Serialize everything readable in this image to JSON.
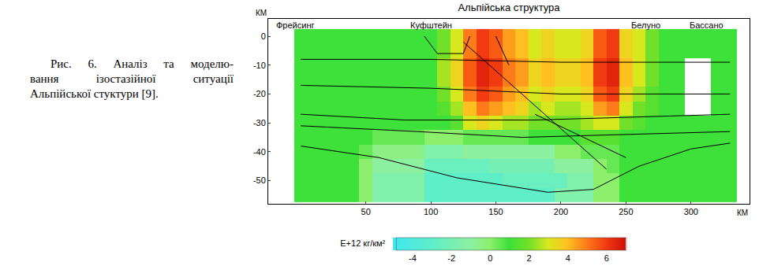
{
  "chart_data": {
    "type": "heatmap",
    "title": "Альпійська структура",
    "caption": [
      "Рис. 6. Аналіз та моделю-",
      "вання ізостазійної ситуації",
      "Альпійської стуктури [9]."
    ],
    "xlabel": "КМ",
    "ylabel": "КМ",
    "x": [
      0,
      10,
      20,
      30,
      40,
      50,
      60,
      70,
      80,
      90,
      100,
      110,
      120,
      130,
      140,
      150,
      160,
      170,
      180,
      190,
      200,
      210,
      220,
      230,
      240,
      250,
      260,
      270,
      280,
      290,
      300,
      310,
      320,
      330
    ],
    "y": [
      0,
      -5,
      -10,
      -15,
      -20,
      -25,
      -30,
      -35,
      -40,
      -45,
      -50,
      -55
    ],
    "cells": [
      [
        1,
        1,
        1,
        1,
        1,
        1,
        1,
        1,
        1,
        1,
        1,
        2,
        3,
        5,
        6,
        5.5,
        4.5,
        4,
        3,
        3.5,
        3,
        3,
        3.5,
        5.5,
        6,
        3.5,
        3,
        2,
        1,
        1,
        1,
        1,
        1,
        1
      ],
      [
        1,
        1,
        1,
        1,
        1,
        1,
        1,
        1,
        1,
        1,
        1,
        2,
        3,
        5,
        6,
        5.5,
        4.5,
        4,
        3,
        3.5,
        3,
        3,
        3.5,
        5.5,
        6,
        3.5,
        3,
        2,
        1,
        1,
        1,
        1,
        1,
        1
      ],
      [
        1,
        1,
        1,
        1,
        1,
        1,
        1,
        1,
        1,
        1,
        1,
        2.5,
        3.5,
        5.5,
        6.5,
        6,
        5,
        4.5,
        3.5,
        4,
        3.5,
        3.5,
        4,
        6,
        6.5,
        4,
        3,
        2,
        1,
        1,
        null,
        null,
        1,
        1
      ],
      [
        1,
        1,
        1,
        1,
        1,
        1,
        1,
        1,
        1,
        1,
        1,
        2.5,
        3.5,
        5.5,
        6.5,
        6,
        5,
        4.5,
        3.5,
        4,
        3.5,
        3.5,
        4,
        6,
        6.5,
        4,
        3,
        2,
        1,
        1,
        null,
        null,
        1,
        1
      ],
      [
        1,
        1,
        1,
        1,
        1,
        1,
        1,
        1,
        1,
        1,
        1,
        2,
        3,
        5,
        6,
        5.5,
        4.5,
        4,
        3,
        3.5,
        3,
        3,
        3.5,
        5.5,
        6,
        3.5,
        2.5,
        1.5,
        1,
        1,
        null,
        null,
        1,
        1
      ],
      [
        1,
        1,
        1,
        1,
        1,
        1,
        1,
        1,
        1,
        1,
        1,
        1.5,
        2.5,
        4,
        5,
        4.5,
        4,
        3.5,
        2.5,
        3,
        2.5,
        2.5,
        3,
        4.5,
        5,
        3,
        2,
        1.5,
        1,
        1,
        null,
        null,
        1,
        1
      ],
      [
        1,
        1,
        1,
        1,
        1,
        1,
        1,
        1,
        1,
        1,
        1,
        1,
        1.5,
        3,
        3.5,
        3,
        2.5,
        2.5,
        2,
        2,
        2,
        2,
        2.5,
        3,
        3,
        2,
        1.5,
        1,
        1,
        1,
        1,
        1,
        1,
        1
      ],
      [
        1,
        1,
        1,
        1,
        1,
        1,
        0.5,
        0.5,
        0.5,
        0.5,
        0,
        0,
        0,
        0.5,
        0.5,
        0.5,
        0.5,
        0.5,
        1,
        1,
        1,
        1,
        1.5,
        1.5,
        1.5,
        1,
        1,
        1,
        1,
        1,
        1,
        1,
        1,
        1
      ],
      [
        1,
        1,
        1,
        1,
        1,
        0.5,
        -0.5,
        -0.5,
        -0.5,
        -0.5,
        -1.5,
        -1.5,
        -1.5,
        -1,
        -1,
        -1,
        -1,
        -1,
        -1,
        -1,
        0,
        0,
        0.5,
        0.5,
        0.5,
        1,
        1,
        1,
        1,
        1,
        1,
        1,
        1,
        1
      ],
      [
        1,
        1,
        1,
        1,
        1,
        0,
        -1,
        -1,
        -1,
        -1,
        -2.5,
        -2.5,
        -2.5,
        -2.5,
        -2.5,
        -2,
        -2,
        -2,
        -2,
        -2,
        -1,
        -1,
        -1,
        0,
        0.5,
        1,
        1,
        1,
        1,
        1,
        1,
        1,
        1,
        1
      ],
      [
        1,
        1,
        1,
        1,
        1,
        0,
        -1.5,
        -1.5,
        -1.5,
        -1.5,
        -3,
        -3,
        -3,
        -3,
        -3,
        -3,
        -2.5,
        -2.5,
        -2.5,
        -2.5,
        -2.5,
        -1.5,
        -1.5,
        0,
        0,
        1,
        1,
        1,
        1,
        1,
        1,
        1,
        1,
        1
      ],
      [
        1,
        1,
        1,
        1,
        1,
        0,
        -1.5,
        -1.5,
        -1.5,
        -1.5,
        -3,
        -3,
        -3,
        -3,
        -3,
        -3,
        -3,
        -3,
        -3,
        -3,
        -1.5,
        -1.5,
        -1.5,
        0,
        0,
        1,
        1,
        1,
        1,
        1,
        1,
        1,
        1,
        1
      ]
    ],
    "xlim": [
      -25,
      345
    ],
    "xticks": [
      50,
      100,
      150,
      200,
      250,
      300
    ],
    "ylim": [
      -58,
      6
    ],
    "yticks": [
      0,
      -10,
      -20,
      -30,
      -40,
      -50
    ],
    "grid": false,
    "colorbar": {
      "range": [
        -5,
        7
      ],
      "ticks": [
        -4,
        -2,
        0,
        2,
        4,
        6
      ],
      "title": "E+12 кг/км²"
    },
    "places": [
      {
        "label": "Фрейсинг",
        "x": -20
      },
      {
        "label": "Куфштейн",
        "x": 100
      },
      {
        "label": "Белуно",
        "x": 265
      },
      {
        "label": "Бассано",
        "x": 312
      }
    ],
    "boundaries": {
      "color": "#000000",
      "lines": [
        {
          "x": [
            0,
            100,
            200,
            330
          ],
          "y": [
            -8,
            -8,
            -9,
            -9
          ]
        },
        {
          "x": [
            0,
            100,
            200,
            330
          ],
          "y": [
            -17,
            -18,
            -20,
            -20
          ]
        },
        {
          "x": [
            0,
            80,
            180,
            330
          ],
          "y": [
            -27,
            -29,
            -29,
            -27
          ]
        },
        {
          "x": [
            0,
            90,
            170,
            330
          ],
          "y": [
            -31,
            -33,
            -35,
            -33
          ]
        },
        {
          "x": [
            0,
            60,
            120,
            190,
            225,
            260,
            300,
            330
          ],
          "y": [
            -38,
            -42,
            -49,
            -54,
            -53,
            -45,
            -39,
            -37
          ]
        },
        {
          "x": [
            125,
            235
          ],
          "y": [
            -2,
            -46
          ]
        },
        {
          "x": [
            180,
            250
          ],
          "y": [
            -27,
            -42
          ]
        },
        {
          "x": [
            95,
            105,
            125,
            130
          ],
          "y": [
            0,
            -6,
            -6,
            0
          ]
        },
        {
          "x": [
            150,
            160
          ],
          "y": [
            0,
            -10
          ]
        }
      ]
    }
  }
}
